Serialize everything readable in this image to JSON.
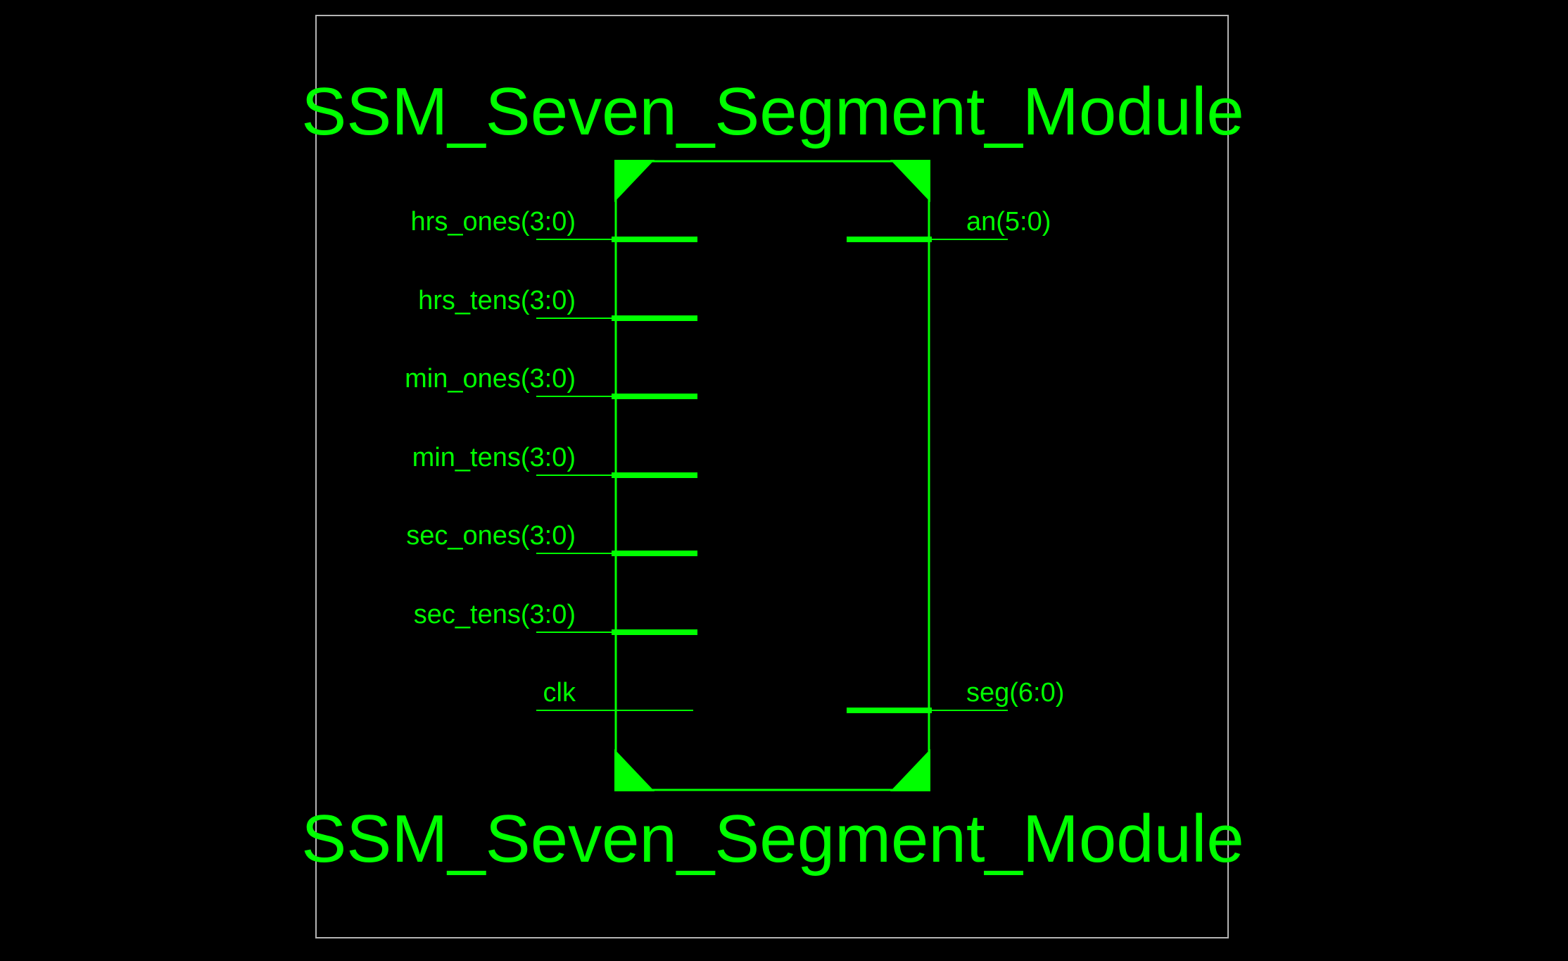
{
  "colors": {
    "background": "#000000",
    "wire": "#00ff00",
    "frame": "#b4b4b4"
  },
  "diagram": {
    "top_title": "SSM_Seven_Segment_Module",
    "bottom_title": "SSM_Seven_Segment_Module",
    "inputs": [
      {
        "name": "hrs_ones(3:0)",
        "bus": true
      },
      {
        "name": "hrs_tens(3:0)",
        "bus": true
      },
      {
        "name": "min_ones(3:0)",
        "bus": true
      },
      {
        "name": "min_tens(3:0)",
        "bus": true
      },
      {
        "name": "sec_ones(3:0)",
        "bus": true
      },
      {
        "name": "sec_tens(3:0)",
        "bus": true
      },
      {
        "name": "clk",
        "bus": false
      }
    ],
    "outputs": [
      {
        "name": "an(5:0)",
        "bus": true
      },
      {
        "name": "seg(6:0)",
        "bus": true
      }
    ]
  }
}
